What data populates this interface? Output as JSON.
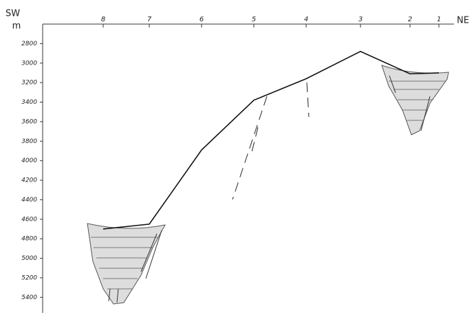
{
  "chart_data": {
    "type": "line",
    "left_label": "SW",
    "right_label": "NE",
    "y_unit": "m",
    "categories": [
      "8",
      "7",
      "6",
      "5",
      "4",
      "3",
      "2",
      "1"
    ],
    "values": [
      4700,
      4650,
      3890,
      3380,
      3160,
      2880,
      3110,
      3100
    ],
    "color": "#111",
    "ylim": [
      2600,
      5560
    ],
    "y_inverted": true,
    "yticks": [
      2800,
      3000,
      3200,
      3400,
      3600,
      3800,
      4000,
      4200,
      4400,
      4600,
      4800,
      5000,
      5200,
      5400
    ]
  }
}
